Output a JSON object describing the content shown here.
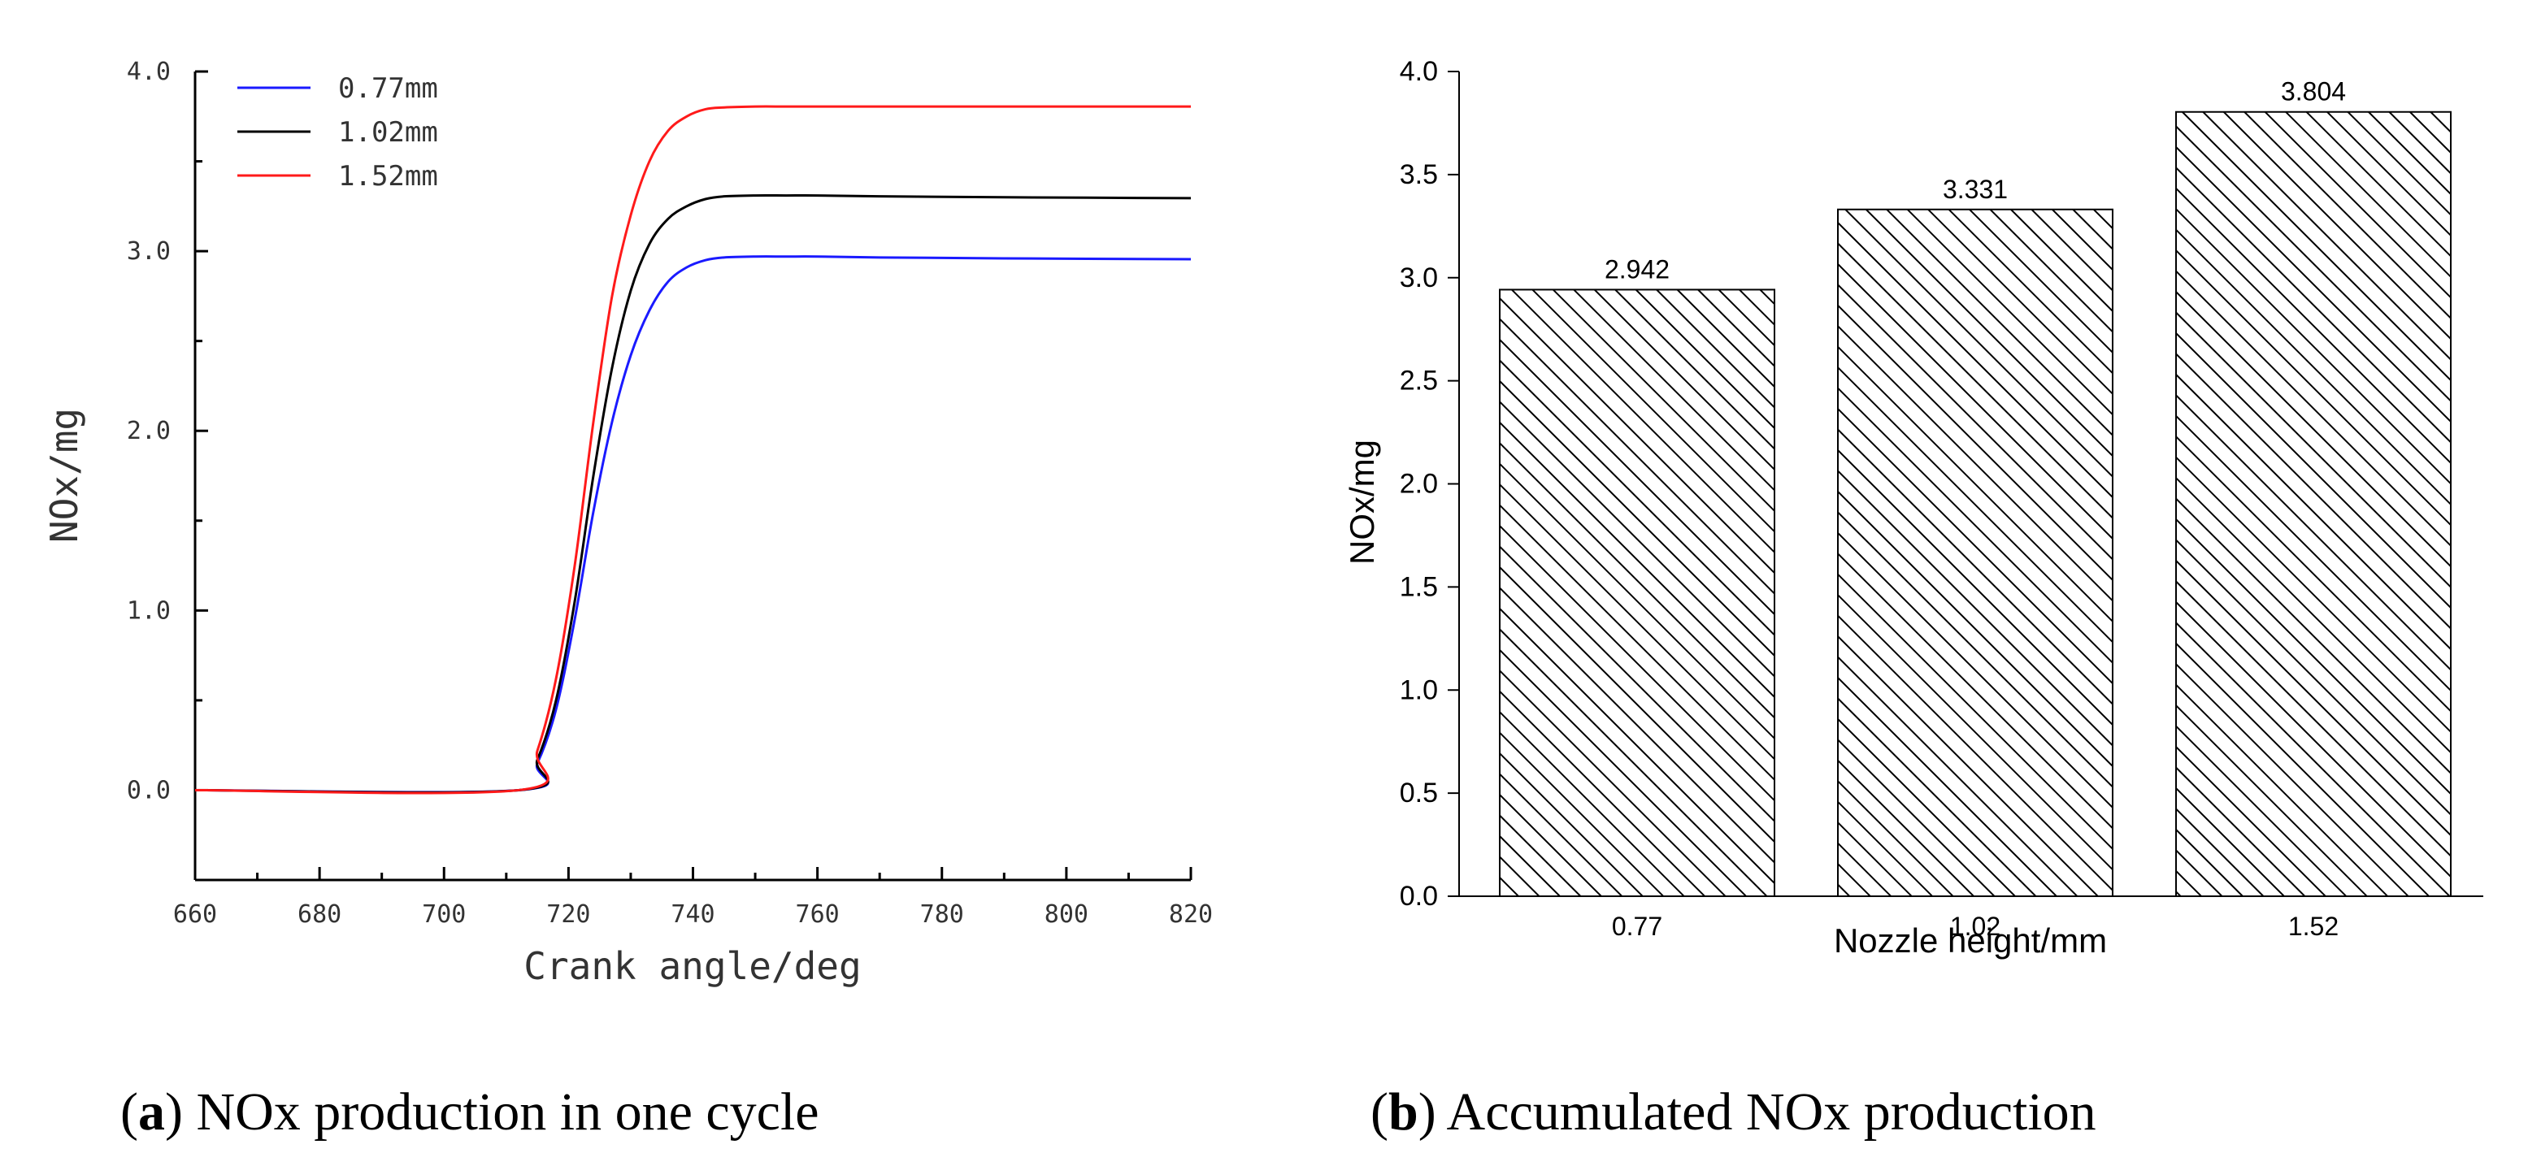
{
  "colors": {
    "series_a": "#1a1aff",
    "series_b": "#000000",
    "series_c": "#ff1a1a",
    "axis": "#000000"
  },
  "chart_data": [
    {
      "id": "a",
      "type": "line",
      "title": "",
      "xlabel": "Crank angle/deg",
      "ylabel": "NOx/mg",
      "xlim": [
        660,
        820
      ],
      "ylim": [
        -0.5,
        4.0
      ],
      "xticks": [
        660,
        680,
        700,
        720,
        740,
        760,
        780,
        800,
        820
      ],
      "xtick_labels": [
        "660",
        "680",
        "700",
        "720",
        "740",
        "760",
        "780",
        "800",
        "820"
      ],
      "yticks": [
        0.0,
        1.0,
        2.0,
        3.0,
        4.0
      ],
      "ytick_labels": [
        "0.0",
        "1.0",
        "2.0",
        "3.0",
        "4.0"
      ],
      "legend_position": "top-left",
      "grid": false,
      "series": [
        {
          "name": "0.77mm",
          "color": "#1a1aff",
          "x": [
            660,
            712,
            715,
            718,
            721,
            724,
            727,
            730,
            733,
            736,
            739,
            742,
            745,
            750,
            755,
            760,
            770,
            790,
            820
          ],
          "y": [
            0,
            0,
            0.15,
            0.45,
            0.95,
            1.55,
            2.05,
            2.42,
            2.67,
            2.83,
            2.91,
            2.95,
            2.965,
            2.97,
            2.97,
            2.97,
            2.965,
            2.96,
            2.955
          ]
        },
        {
          "name": "1.02mm",
          "color": "#000000",
          "x": [
            660,
            712,
            715,
            718,
            721,
            724,
            727,
            730,
            733,
            736,
            739,
            742,
            745,
            750,
            755,
            760,
            770,
            790,
            820
          ],
          "y": [
            0,
            0,
            0.17,
            0.5,
            1.05,
            1.75,
            2.35,
            2.78,
            3.04,
            3.18,
            3.25,
            3.29,
            3.305,
            3.31,
            3.31,
            3.31,
            3.305,
            3.3,
            3.295
          ]
        },
        {
          "name": "1.52mm",
          "color": "#ff1a1a",
          "x": [
            660,
            712,
            715,
            718,
            721,
            724,
            727,
            730,
            733,
            736,
            739,
            742,
            745,
            750,
            755,
            760,
            770,
            790,
            820
          ],
          "y": [
            0,
            0,
            0.22,
            0.62,
            1.25,
            2.05,
            2.75,
            3.2,
            3.5,
            3.67,
            3.75,
            3.79,
            3.8,
            3.805,
            3.805,
            3.805,
            3.805,
            3.805,
            3.805
          ]
        }
      ],
      "caption_letter": "a",
      "caption_text": " NOx production in one cycle"
    },
    {
      "id": "b",
      "type": "bar",
      "title": "",
      "xlabel": "Nozzle height/mm",
      "ylabel": "NOx/mg",
      "categories": [
        "0.77",
        "1.02",
        "1.52"
      ],
      "values": [
        2.942,
        3.331,
        3.804
      ],
      "data_labels": [
        "2.942",
        "3.331",
        "3.804"
      ],
      "ylim": [
        0.0,
        4.0
      ],
      "yticks": [
        0.0,
        0.5,
        1.0,
        1.5,
        2.0,
        2.5,
        3.0,
        3.5,
        4.0
      ],
      "ytick_labels": [
        "0.0",
        "0.5",
        "1.0",
        "1.5",
        "2.0",
        "2.5",
        "3.0",
        "3.5",
        "4.0"
      ],
      "grid": false,
      "fill": "hatched",
      "caption_letter": "b",
      "caption_text": " Accumulated NOx production"
    }
  ]
}
